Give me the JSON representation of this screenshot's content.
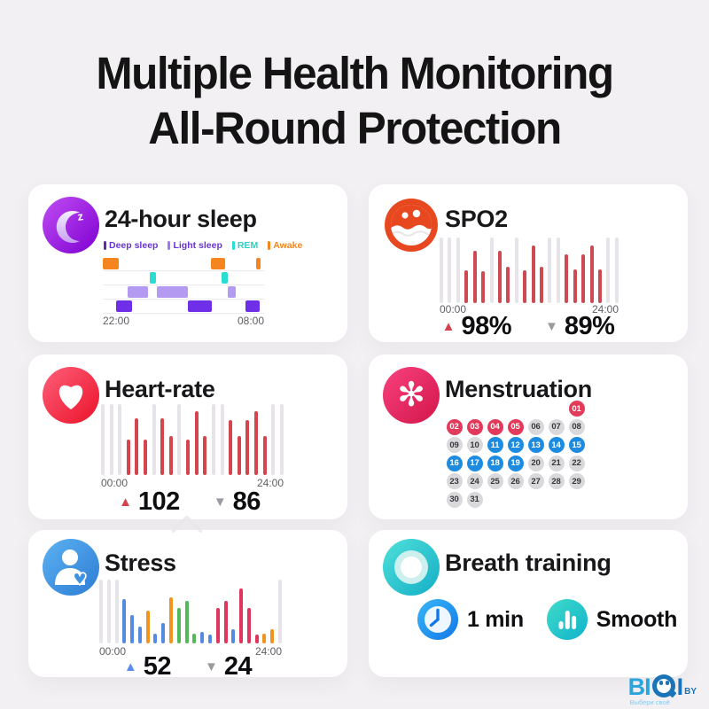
{
  "title": {
    "line1": "Multiple Health Monitoring",
    "line2": "All-Round Protection"
  },
  "icons": {
    "sleep": "moon-z-icon",
    "spo2": "blood-oxygen-face-icon",
    "heart": "heart-icon",
    "menstruation": "flower-icon",
    "stress": "person-heart-icon",
    "breath": "concentric-rings-icon",
    "duration": "clock-icon",
    "smooth": "equalizer-bars-icon",
    "stat_up": "▲",
    "stat_down": "▼"
  },
  "cards": {
    "sleep": {
      "title": "24-hour sleep",
      "legend": [
        {
          "label": "Deep sleep",
          "mark_color": "#5c2db0",
          "text_color": "#6a35d8"
        },
        {
          "label": "Light sleep",
          "mark_color": "#9b7cf0",
          "text_color": "#6a35d8"
        },
        {
          "label": "REM",
          "mark_color": "#2bdcd0",
          "text_color": "#2bd0c6"
        },
        {
          "label": "Awake",
          "mark_color": "#f5861f",
          "text_color": "#f5861f"
        }
      ],
      "time_start": "22:00",
      "time_end": "08:00"
    },
    "spo2": {
      "title": "SPO2",
      "time_start": "00:00",
      "time_end": "24:00",
      "max_label": "98%",
      "min_label": "89%"
    },
    "heart": {
      "title": "Heart-rate",
      "time_start": "00:00",
      "time_end": "24:00",
      "max_label": "102",
      "min_label": "86"
    },
    "menstruation": {
      "title": "Menstruation"
    },
    "stress": {
      "title": "Stress",
      "time_start": "00:00",
      "time_end": "24:00",
      "max_label": "52",
      "min_label": "24"
    },
    "breath": {
      "title": "Breath training",
      "duration_label": "1 min",
      "mode_label": "Smooth"
    }
  },
  "chart_data": [
    {
      "id": "sleep_hypnogram",
      "type": "bar",
      "title": "24-hour sleep",
      "x_ticks": [
        "22:00",
        "08:00"
      ],
      "rows": [
        {
          "name": "Awake",
          "color": "#f5861f",
          "segments": [
            [
              0.0,
              0.1
            ],
            [
              0.67,
              0.76
            ],
            [
              0.95,
              0.98
            ]
          ]
        },
        {
          "name": "REM",
          "color": "#2bdcd0",
          "segments": [
            [
              0.29,
              0.33
            ],
            [
              0.735,
              0.775
            ]
          ]
        },
        {
          "name": "Light sleep",
          "color": "#b49af0",
          "segments": [
            [
              0.155,
              0.28
            ],
            [
              0.335,
              0.53
            ],
            [
              0.775,
              0.825
            ]
          ]
        },
        {
          "name": "Deep sleep",
          "color": "#6f2fe8",
          "segments": [
            [
              0.085,
              0.18
            ],
            [
              0.53,
              0.675
            ],
            [
              0.885,
              0.975
            ]
          ]
        }
      ]
    },
    {
      "id": "spo2_bars",
      "type": "bar",
      "title": "SPO2",
      "x_ticks": [
        "00:00",
        "24:00"
      ],
      "max_label": "98%",
      "min_label": "89%",
      "bar_color": "#ce4a52",
      "track_color": "#e6e4e8",
      "values": [
        null,
        null,
        null,
        0.5,
        0.8,
        0.48,
        null,
        0.8,
        0.55,
        null,
        0.5,
        0.88,
        0.55,
        null,
        null,
        0.75,
        0.52,
        0.75,
        0.88,
        0.52,
        null,
        null
      ]
    },
    {
      "id": "heart_bars",
      "type": "bar",
      "title": "Heart-rate",
      "x_ticks": [
        "00:00",
        "24:00"
      ],
      "max_label": "102",
      "min_label": "86",
      "bar_color": "#d4454e",
      "track_color": "#e6e4e8",
      "values": [
        null,
        null,
        null,
        0.5,
        0.8,
        0.5,
        null,
        0.8,
        0.55,
        null,
        0.5,
        0.9,
        0.55,
        null,
        null,
        0.78,
        0.55,
        0.78,
        0.9,
        0.55,
        null,
        null
      ]
    },
    {
      "id": "stress_bars",
      "type": "bar",
      "title": "Stress",
      "x_ticks": [
        "00:00",
        "24:00"
      ],
      "max_label": "52",
      "min_label": "24",
      "track_color": "#e6e4e8",
      "values": [
        null,
        null,
        null,
        {
          "v": 0.7,
          "c": "#548be0"
        },
        {
          "v": 0.45,
          "c": "#548be0"
        },
        {
          "v": 0.26,
          "c": "#548be0"
        },
        {
          "v": 0.52,
          "c": "#f0931f"
        },
        {
          "v": 0.15,
          "c": "#548be0"
        },
        {
          "v": 0.32,
          "c": "#548be0"
        },
        {
          "v": 0.72,
          "c": "#f0931f"
        },
        {
          "v": 0.55,
          "c": "#52b85a"
        },
        {
          "v": 0.66,
          "c": "#52b85a"
        },
        {
          "v": 0.15,
          "c": "#52b85a"
        },
        {
          "v": 0.18,
          "c": "#548be0"
        },
        {
          "v": 0.14,
          "c": "#548be0"
        },
        {
          "v": 0.56,
          "c": "#e0355c"
        },
        {
          "v": 0.66,
          "c": "#e0355c"
        },
        {
          "v": 0.22,
          "c": "#548be0"
        },
        {
          "v": 0.86,
          "c": "#e0355c"
        },
        {
          "v": 0.56,
          "c": "#e0355c"
        },
        {
          "v": 0.14,
          "c": "#e0355c"
        },
        {
          "v": 0.15,
          "c": "#f0931f"
        },
        {
          "v": 0.22,
          "c": "#f0931f"
        },
        null
      ]
    },
    {
      "id": "menstruation_calendar",
      "type": "table",
      "title": "Menstruation",
      "start_offset": 6,
      "styles": {
        "period": {
          "bg": "#e23a5a",
          "fg": "#ffffff"
        },
        "fertile": {
          "bg": "#1d8ce0",
          "fg": "#ffffff"
        },
        "normal": {
          "bg": "#d9d8db",
          "fg": "#39393d"
        }
      },
      "days": [
        {
          "d": "01",
          "state": "period"
        },
        {
          "d": "02",
          "state": "period"
        },
        {
          "d": "03",
          "state": "period"
        },
        {
          "d": "04",
          "state": "period"
        },
        {
          "d": "05",
          "state": "period"
        },
        {
          "d": "06",
          "state": "normal"
        },
        {
          "d": "07",
          "state": "normal"
        },
        {
          "d": "08",
          "state": "normal"
        },
        {
          "d": "09",
          "state": "normal"
        },
        {
          "d": "10",
          "state": "normal"
        },
        {
          "d": "11",
          "state": "fertile"
        },
        {
          "d": "12",
          "state": "fertile"
        },
        {
          "d": "13",
          "state": "fertile"
        },
        {
          "d": "14",
          "state": "fertile"
        },
        {
          "d": "15",
          "state": "fertile"
        },
        {
          "d": "16",
          "state": "fertile"
        },
        {
          "d": "17",
          "state": "fertile"
        },
        {
          "d": "18",
          "state": "fertile"
        },
        {
          "d": "19",
          "state": "fertile"
        },
        {
          "d": "20",
          "state": "normal"
        },
        {
          "d": "21",
          "state": "normal"
        },
        {
          "d": "22",
          "state": "normal"
        },
        {
          "d": "23",
          "state": "normal"
        },
        {
          "d": "24",
          "state": "normal"
        },
        {
          "d": "25",
          "state": "normal"
        },
        {
          "d": "26",
          "state": "normal"
        },
        {
          "d": "27",
          "state": "normal"
        },
        {
          "d": "28",
          "state": "normal"
        },
        {
          "d": "29",
          "state": "normal"
        },
        {
          "d": "30",
          "state": "normal"
        },
        {
          "d": "31",
          "state": "normal"
        }
      ]
    }
  ],
  "logo": {
    "letters_light": "BI",
    "letter_dark": "I",
    "suffix": "BY",
    "tagline": "Выбери своё"
  },
  "colors": {
    "background": "#f2f0f2",
    "card": "#ffffff",
    "spo2_red": "#ce4a52",
    "heart_red": "#d4454e",
    "stress_blue": "#548be0",
    "stress_orange": "#f0931f",
    "stress_green": "#52b85a",
    "stress_crimson": "#e0355c",
    "period_red": "#e23a5a",
    "fertile_blue": "#1d8ce0",
    "track_gray": "#e6e4e8"
  }
}
